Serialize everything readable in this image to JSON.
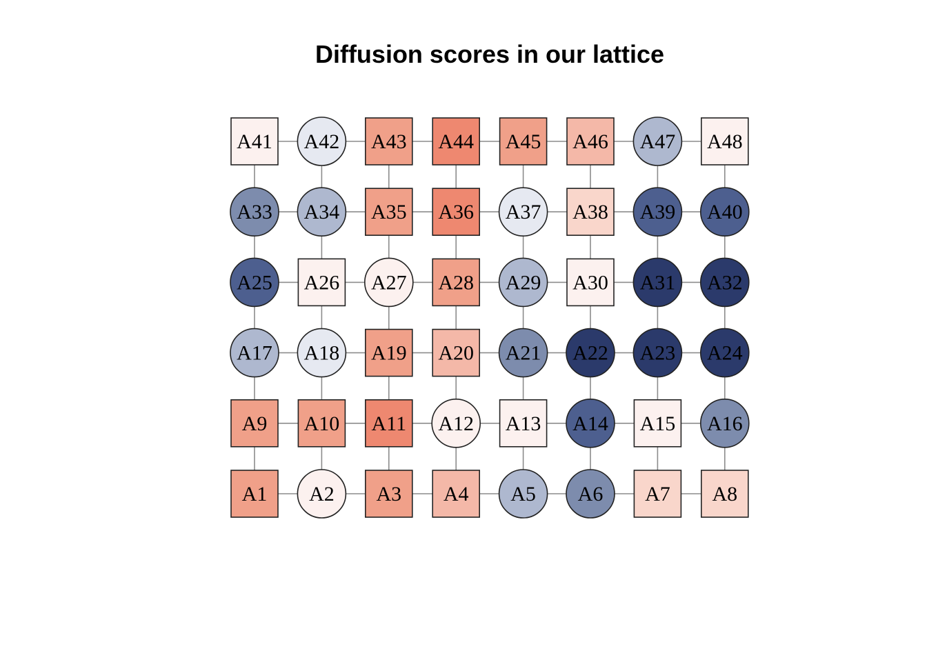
{
  "title": "Diffusion scores in our lattice",
  "grid": {
    "columns": 8,
    "rows": 6
  },
  "colors": {
    "edge": "#8c8c8c",
    "node_border": "#222222"
  },
  "nodes": [
    {
      "id": "A1",
      "shape": "square",
      "fill": "#f0a089"
    },
    {
      "id": "A2",
      "shape": "circle",
      "fill": "#fcf1ef"
    },
    {
      "id": "A3",
      "shape": "square",
      "fill": "#f0a089"
    },
    {
      "id": "A4",
      "shape": "square",
      "fill": "#f4b8a8"
    },
    {
      "id": "A5",
      "shape": "circle",
      "fill": "#aeb8cf"
    },
    {
      "id": "A6",
      "shape": "circle",
      "fill": "#7d8cad"
    },
    {
      "id": "A7",
      "shape": "square",
      "fill": "#f9d6cb"
    },
    {
      "id": "A8",
      "shape": "square",
      "fill": "#f9d6cb"
    },
    {
      "id": "A9",
      "shape": "square",
      "fill": "#f0a089"
    },
    {
      "id": "A10",
      "shape": "square",
      "fill": "#f0a089"
    },
    {
      "id": "A11",
      "shape": "square",
      "fill": "#ee8870"
    },
    {
      "id": "A12",
      "shape": "circle",
      "fill": "#fcf1ef"
    },
    {
      "id": "A13",
      "shape": "square",
      "fill": "#fcf1ef"
    },
    {
      "id": "A14",
      "shape": "circle",
      "fill": "#4d5f8f"
    },
    {
      "id": "A15",
      "shape": "square",
      "fill": "#fcf1ef"
    },
    {
      "id": "A16",
      "shape": "circle",
      "fill": "#7d8cad"
    },
    {
      "id": "A17",
      "shape": "circle",
      "fill": "#aeb8cf"
    },
    {
      "id": "A18",
      "shape": "circle",
      "fill": "#e6e9f1"
    },
    {
      "id": "A19",
      "shape": "square",
      "fill": "#f0a089"
    },
    {
      "id": "A20",
      "shape": "square",
      "fill": "#f4b8a8"
    },
    {
      "id": "A21",
      "shape": "circle",
      "fill": "#7d8cad"
    },
    {
      "id": "A22",
      "shape": "circle",
      "fill": "#2b3a6b"
    },
    {
      "id": "A23",
      "shape": "circle",
      "fill": "#2b3a6b"
    },
    {
      "id": "A24",
      "shape": "circle",
      "fill": "#2b3a6b"
    },
    {
      "id": "A25",
      "shape": "circle",
      "fill": "#4d5f8f"
    },
    {
      "id": "A26",
      "shape": "square",
      "fill": "#fcf1ef"
    },
    {
      "id": "A27",
      "shape": "circle",
      "fill": "#fcf1ef"
    },
    {
      "id": "A28",
      "shape": "square",
      "fill": "#f0a089"
    },
    {
      "id": "A29",
      "shape": "circle",
      "fill": "#aeb8cf"
    },
    {
      "id": "A30",
      "shape": "square",
      "fill": "#fcf1ef"
    },
    {
      "id": "A31",
      "shape": "circle",
      "fill": "#2b3a6b"
    },
    {
      "id": "A32",
      "shape": "circle",
      "fill": "#2b3a6b"
    },
    {
      "id": "A33",
      "shape": "circle",
      "fill": "#7d8cad"
    },
    {
      "id": "A34",
      "shape": "circle",
      "fill": "#aeb8cf"
    },
    {
      "id": "A35",
      "shape": "square",
      "fill": "#f0a089"
    },
    {
      "id": "A36",
      "shape": "square",
      "fill": "#ee8870"
    },
    {
      "id": "A37",
      "shape": "circle",
      "fill": "#e6e9f1"
    },
    {
      "id": "A38",
      "shape": "square",
      "fill": "#f9d6cb"
    },
    {
      "id": "A39",
      "shape": "circle",
      "fill": "#4d5f8f"
    },
    {
      "id": "A40",
      "shape": "circle",
      "fill": "#4d5f8f"
    },
    {
      "id": "A41",
      "shape": "square",
      "fill": "#fcf1ef"
    },
    {
      "id": "A42",
      "shape": "circle",
      "fill": "#e6e9f1"
    },
    {
      "id": "A43",
      "shape": "square",
      "fill": "#f0a089"
    },
    {
      "id": "A44",
      "shape": "square",
      "fill": "#ee8870"
    },
    {
      "id": "A45",
      "shape": "square",
      "fill": "#f0a089"
    },
    {
      "id": "A46",
      "shape": "square",
      "fill": "#f4b8a8"
    },
    {
      "id": "A47",
      "shape": "circle",
      "fill": "#aeb8cf"
    },
    {
      "id": "A48",
      "shape": "square",
      "fill": "#fcf1ef"
    }
  ]
}
